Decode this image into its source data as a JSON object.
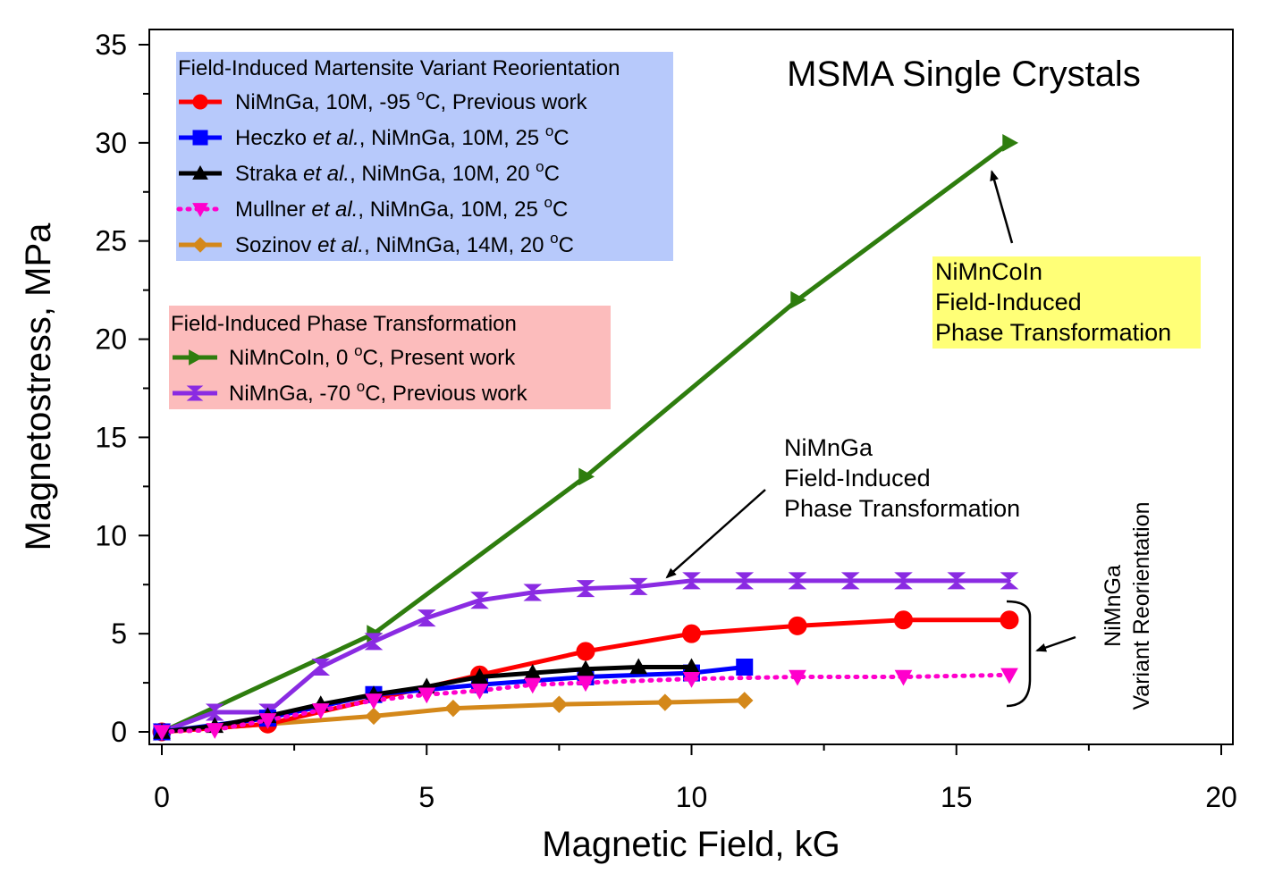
{
  "chart_data": {
    "type": "line",
    "title": "MSMA Single Crystals",
    "xlabel": "Magnetic Field, kG",
    "ylabel": "Magnetostress, MPa",
    "xlim": [
      0,
      20
    ],
    "ylim": [
      0,
      35
    ],
    "xticks": [
      0,
      5,
      10,
      15,
      20
    ],
    "yticks": [
      0,
      5,
      10,
      15,
      20,
      25,
      30,
      35
    ],
    "grid": false,
    "legend_groups": [
      {
        "heading": "Field-Induced Martensite Variant Reorientation",
        "background": "#b7c9fb",
        "entries": [
          {
            "series_index": 0,
            "text_parts": [
              {
                "t": "NiMnGa, 10M, -95 "
              },
              {
                "t": "o",
                "sup": true
              },
              {
                "t": "C, Previous work"
              }
            ]
          },
          {
            "series_index": 1,
            "text_parts": [
              {
                "t": "Heczko "
              },
              {
                "t": "et al.",
                "italic": true
              },
              {
                "t": ", NiMnGa, 10M, 25 "
              },
              {
                "t": "o",
                "sup": true
              },
              {
                "t": "C"
              }
            ]
          },
          {
            "series_index": 2,
            "text_parts": [
              {
                "t": "Straka  "
              },
              {
                "t": "et al.",
                "italic": true
              },
              {
                "t": ", NiMnGa, 10M, 20 "
              },
              {
                "t": "o",
                "sup": true
              },
              {
                "t": "C"
              }
            ]
          },
          {
            "series_index": 3,
            "text_parts": [
              {
                "t": "Mullner "
              },
              {
                "t": "et al.",
                "italic": true
              },
              {
                "t": ", NiMnGa, 10M, 25 "
              },
              {
                "t": "o",
                "sup": true
              },
              {
                "t": "C"
              }
            ]
          },
          {
            "series_index": 4,
            "text_parts": [
              {
                "t": "Sozinov "
              },
              {
                "t": "et al.",
                "italic": true
              },
              {
                "t": ", NiMnGa, 14M, 20 "
              },
              {
                "t": "o",
                "sup": true
              },
              {
                "t": "C"
              }
            ]
          }
        ]
      },
      {
        "heading": "Field-Induced Phase Transformation",
        "background": "#fcbcbc",
        "entries": [
          {
            "series_index": 5,
            "text_parts": [
              {
                "t": "NiMnCoIn, 0 "
              },
              {
                "t": "o",
                "sup": true
              },
              {
                "t": "C, Present work"
              }
            ]
          },
          {
            "series_index": 6,
            "text_parts": [
              {
                "t": "NiMnGa, -70 "
              },
              {
                "t": "o",
                "sup": true
              },
              {
                "t": "C, Previous work"
              }
            ]
          }
        ]
      }
    ],
    "series": [
      {
        "name": "NiMnGa, 10M, -95 oC, Previous work",
        "color": "#ff0000",
        "marker": "circle",
        "dash": "solid",
        "x": [
          0,
          2,
          6,
          8,
          10,
          12,
          14,
          16
        ],
        "y": [
          0,
          0.4,
          2.9,
          4.1,
          5.0,
          5.4,
          5.7,
          5.7
        ]
      },
      {
        "name": "Heczko et al., NiMnGa, 10M, 25 oC",
        "color": "#0000ff",
        "marker": "square",
        "dash": "solid",
        "x": [
          0,
          2,
          4,
          6,
          8,
          10,
          11
        ],
        "y": [
          0,
          0.7,
          1.9,
          2.4,
          2.8,
          3.0,
          3.3
        ]
      },
      {
        "name": "Straka et al., NiMnGa, 10M, 20 oC",
        "color": "#000000",
        "marker": "triangle-up",
        "dash": "solid",
        "x": [
          0,
          1,
          2,
          3,
          4,
          5,
          6,
          7,
          8,
          9,
          10
        ],
        "y": [
          0,
          0.3,
          0.8,
          1.4,
          1.9,
          2.3,
          2.8,
          3.0,
          3.2,
          3.3,
          3.3
        ]
      },
      {
        "name": "Mullner et al., NiMnGa, 10M, 25 oC",
        "color": "#ff00cc",
        "marker": "triangle-down",
        "dash": "dotted",
        "x": [
          0,
          1,
          2,
          3,
          4,
          5,
          6,
          7,
          8,
          10,
          12,
          14,
          16
        ],
        "y": [
          0,
          0.1,
          0.6,
          1.1,
          1.6,
          1.9,
          2.1,
          2.4,
          2.5,
          2.7,
          2.8,
          2.8,
          2.9
        ]
      },
      {
        "name": "Sozinov et al., NiMnGa, 14M, 20 oC",
        "color": "#d4881a",
        "marker": "diamond",
        "dash": "solid",
        "x": [
          0,
          2,
          4,
          5.5,
          7.5,
          9.5,
          11
        ],
        "y": [
          0,
          0.4,
          0.8,
          1.2,
          1.4,
          1.5,
          1.6
        ]
      },
      {
        "name": "NiMnCoIn, 0 oC, Present work",
        "color": "#2e7d0e",
        "marker": "triangle-right",
        "dash": "solid",
        "x": [
          0,
          4,
          8,
          12,
          16
        ],
        "y": [
          0,
          5.0,
          13.0,
          22.0,
          30.0
        ]
      },
      {
        "name": "NiMnGa, -70 oC, Previous work",
        "color": "#8a2be2",
        "marker": "hourglass",
        "dash": "solid",
        "x": [
          0,
          1,
          2,
          3,
          4,
          5,
          6,
          7,
          8,
          9,
          10,
          11,
          12,
          13,
          14,
          15,
          16
        ],
        "y": [
          0,
          1.0,
          1.0,
          3.3,
          4.6,
          5.8,
          6.7,
          7.1,
          7.3,
          7.4,
          7.7,
          7.7,
          7.7,
          7.7,
          7.7,
          7.7,
          7.7
        ]
      }
    ],
    "annotations": [
      {
        "name": "nimncoin-callout",
        "lines": [
          "NiMnCoIn",
          "Field-Induced",
          "Phase Transformation"
        ],
        "background": "#ffff77",
        "arrow_to": [
          15.5,
          28.9
        ]
      },
      {
        "name": "nimnga-phase-callout",
        "lines": [
          "NiMnGa",
          "Field-Induced",
          "Phase Transformation"
        ],
        "background": "none",
        "arrow_to": [
          9.6,
          7.9
        ]
      },
      {
        "name": "nimnga-variant-callout",
        "lines": [
          "NiMnGa",
          "Variant Reorientation"
        ],
        "background": "none",
        "rotated": true
      }
    ]
  }
}
